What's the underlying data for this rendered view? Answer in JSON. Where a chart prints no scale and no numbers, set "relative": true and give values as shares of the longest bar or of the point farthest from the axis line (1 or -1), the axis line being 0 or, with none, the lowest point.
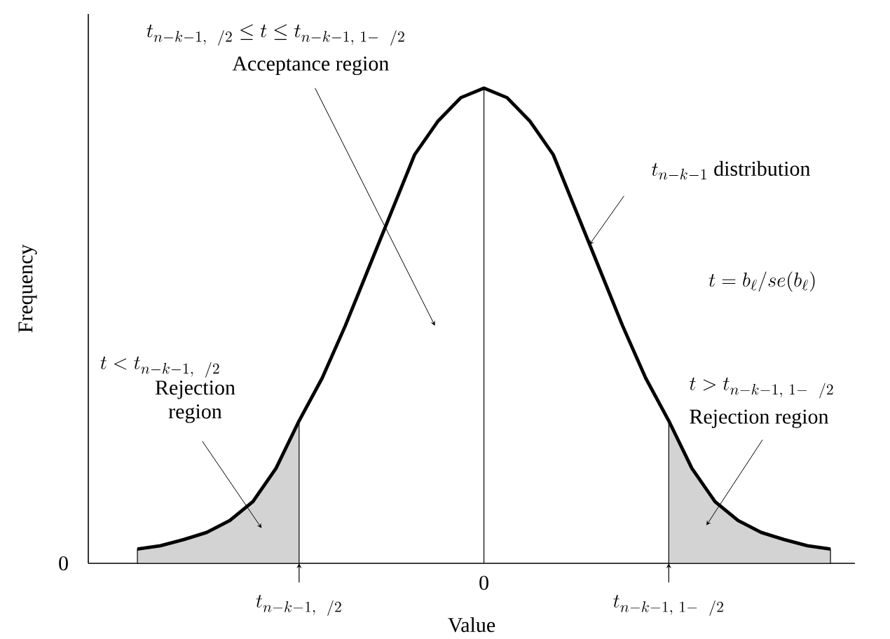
{
  "chart_data": {
    "type": "line",
    "relative": true,
    "xlabel": "Value",
    "ylabel": "Frequency",
    "categories": [
      null,
      null,
      null,
      null,
      null,
      null,
      null,
      null,
      null,
      null,
      null,
      null,
      null,
      null,
      null,
      null,
      null,
      null,
      null,
      null,
      null,
      null,
      null,
      null,
      null,
      null,
      null,
      null,
      null,
      null,
      null
    ],
    "series": [
      {
        "type": "area",
        "color": "#d3d3d3",
        "values": [
          0.03,
          0.037,
          0.05,
          0.065,
          0.09,
          0.13,
          0.2,
          0.3,
          null,
          null,
          null,
          null,
          null,
          null,
          null,
          null,
          null,
          null,
          null,
          null,
          null,
          null,
          null,
          null,
          null,
          null,
          null,
          null,
          null,
          null,
          null
        ]
      },
      {
        "type": "area",
        "color": "#d3d3d3",
        "values": [
          null,
          null,
          null,
          null,
          null,
          null,
          null,
          null,
          null,
          null,
          null,
          null,
          null,
          null,
          null,
          null,
          null,
          null,
          null,
          null,
          null,
          null,
          null,
          0.3,
          0.2,
          0.13,
          0.09,
          0.065,
          0.05,
          0.037,
          0.03
        ]
      },
      {
        "color": "#000000",
        "values": [
          0.03,
          0.037,
          0.05,
          0.065,
          0.09,
          0.13,
          0.2,
          0.3,
          0.39,
          0.5,
          0.62,
          0.74,
          0.86,
          0.93,
          0.98,
          1,
          0.98,
          0.93,
          0.86,
          0.74,
          0.62,
          0.5,
          0.39,
          0.3,
          0.2,
          0.13,
          0.09,
          0.065,
          0.05,
          0.037,
          0.03
        ]
      }
    ],
    "annotations": [
      "t_{n - k - 1,\\ \\ /2} \\leq t \\leq t_{n - k - 1,\\ 1 - \\ \\ /2}",
      "Acceptance region",
      "t_{n - k - 1}\\ \\mathrm{distribution}",
      "t = b_{\\ell}/se(b_{\\ell})",
      "t < t_{n - k - 1,\\ \\ /2}",
      "Rejection region",
      "t > t_{n - k - 1,\\ 1 - \\ \\ /2}",
      "Rejection region",
      "0",
      "t_{n - k - 1,\\ \\ /2}",
      "0",
      "t_{n - k - 1,\\ 1 - \\ \\ /2}"
    ]
  }
}
